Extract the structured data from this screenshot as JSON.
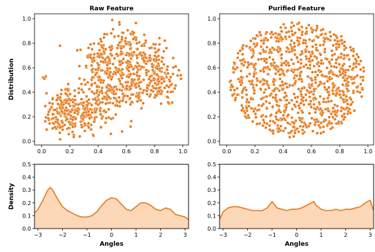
{
  "chart_data": [
    {
      "type": "scatter",
      "title": "Raw Feature",
      "xlabel": "",
      "ylabel": "Distribution",
      "xlim": [
        -0.05,
        1.04
      ],
      "ylim": [
        -0.03,
        1.04
      ],
      "xticks": [
        "0.0",
        "0.2",
        "0.4",
        "0.6",
        "0.8",
        "1.0"
      ],
      "yticks": [
        "0.0",
        "0.2",
        "0.4",
        "0.6",
        "0.8",
        "1.0"
      ],
      "color": "#e87818",
      "distribution": "clustered points forming a diagonal band from lower-left (x 0.05–0.3, y 0.1–0.4) to upper-right (x 0.5–1.0, y 0.3–0.9), approximately 900 points"
    },
    {
      "type": "scatter",
      "title": "Purified Feature",
      "xlabel": "",
      "ylabel": "",
      "xlim": [
        -0.05,
        1.04
      ],
      "ylim": [
        -0.03,
        1.04
      ],
      "xticks": [
        "0.0",
        "0.2",
        "0.4",
        "0.6",
        "0.8",
        "1.0"
      ],
      "yticks": [
        "0.0",
        "0.2",
        "0.4",
        "0.6",
        "0.8",
        "1.0"
      ],
      "color": "#e87818",
      "distribution": "roughly circular cloud centered at (0.5, 0.5) with radius ~0.47, approximately 900 points"
    },
    {
      "type": "area",
      "title": "",
      "xlabel": "Angles",
      "ylabel": "Density",
      "xlim": [
        -3.14,
        3.14
      ],
      "ylim": [
        0,
        0.5
      ],
      "xticks": [
        "−3",
        "−2",
        "−1",
        "0",
        "1",
        "2",
        "3"
      ],
      "yticks": [
        "0.0",
        "0.1",
        "0.2",
        "0.3",
        "0.4",
        "0.5"
      ],
      "line_color": "#e87818",
      "fill_color": "#fcd7b8",
      "x": [
        -3.14,
        -3.0,
        -2.8,
        -2.6,
        -2.5,
        -2.4,
        -2.2,
        -2.0,
        -1.8,
        -1.6,
        -1.4,
        -1.2,
        -1.0,
        -0.8,
        -0.6,
        -0.4,
        -0.2,
        0.0,
        0.2,
        0.4,
        0.6,
        0.8,
        1.0,
        1.2,
        1.4,
        1.6,
        1.8,
        2.0,
        2.2,
        2.4,
        2.6,
        2.8,
        3.0,
        3.14
      ],
      "y": [
        0.12,
        0.15,
        0.22,
        0.3,
        0.32,
        0.3,
        0.23,
        0.17,
        0.14,
        0.12,
        0.1,
        0.09,
        0.09,
        0.1,
        0.13,
        0.18,
        0.22,
        0.24,
        0.23,
        0.19,
        0.15,
        0.14,
        0.17,
        0.2,
        0.2,
        0.18,
        0.15,
        0.14,
        0.16,
        0.15,
        0.11,
        0.1,
        0.09,
        0.07
      ]
    },
    {
      "type": "area",
      "title": "",
      "xlabel": "Angles",
      "ylabel": "",
      "xlim": [
        -3.14,
        3.14
      ],
      "ylim": [
        0,
        0.5
      ],
      "xticks": [
        "−3",
        "−2",
        "−1",
        "0",
        "1",
        "2",
        "3"
      ],
      "yticks": [
        "0.0",
        "0.1",
        "0.2",
        "0.3",
        "0.4",
        "0.5"
      ],
      "line_color": "#e87818",
      "fill_color": "#fcd7b8",
      "x": [
        -3.14,
        -3.0,
        -2.8,
        -2.6,
        -2.4,
        -2.2,
        -2.0,
        -1.8,
        -1.6,
        -1.4,
        -1.2,
        -1.0,
        -0.8,
        -0.6,
        -0.4,
        -0.2,
        0.0,
        0.2,
        0.4,
        0.6,
        0.7,
        0.8,
        1.0,
        1.2,
        1.4,
        1.6,
        1.8,
        2.0,
        2.2,
        2.4,
        2.6,
        2.8,
        3.0,
        3.14
      ],
      "y": [
        0.07,
        0.13,
        0.16,
        0.17,
        0.17,
        0.16,
        0.15,
        0.14,
        0.14,
        0.14,
        0.16,
        0.21,
        0.16,
        0.15,
        0.14,
        0.15,
        0.15,
        0.16,
        0.18,
        0.2,
        0.21,
        0.18,
        0.15,
        0.14,
        0.14,
        0.15,
        0.14,
        0.15,
        0.15,
        0.16,
        0.17,
        0.2,
        0.22,
        0.14
      ]
    }
  ]
}
